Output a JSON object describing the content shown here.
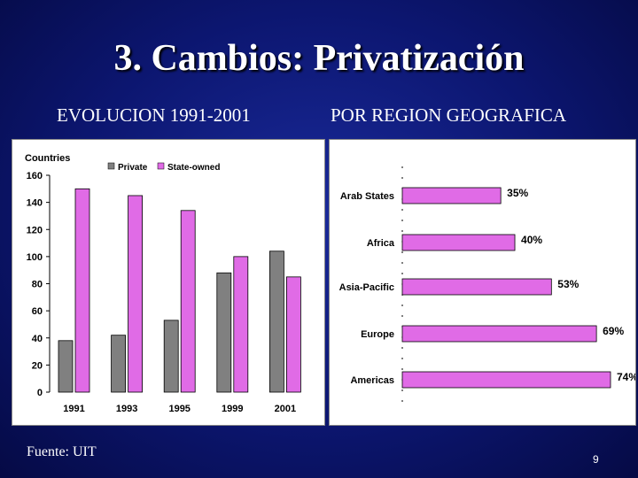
{
  "slide": {
    "title": "3. Cambios: Privatización",
    "left_heading": "EVOLUCION 1991-2001",
    "right_heading": "POR REGION GEOGRAFICA",
    "source": "Fuente: UIT",
    "page_number": "9"
  },
  "chart_data": [
    {
      "type": "bar",
      "ylabel": "Countries",
      "categories": [
        "1991",
        "1993",
        "1995",
        "1999",
        "2001"
      ],
      "series": [
        {
          "name": "Private",
          "color": "#808080",
          "values": [
            38,
            42,
            53,
            88,
            104
          ]
        },
        {
          "name": "State-owned",
          "color": "#e06be6",
          "values": [
            150,
            145,
            134,
            100,
            85
          ]
        }
      ],
      "ylim": [
        0,
        160
      ],
      "yticks": [
        "0",
        "20",
        "40",
        "60",
        "80",
        "100",
        "120",
        "140",
        "160"
      ],
      "legend": "top"
    },
    {
      "type": "bar",
      "orientation": "horizontal",
      "color": "#e06be6",
      "categories": [
        "Arab States",
        "Africa",
        "Asia-Pacific",
        "Europe",
        "Americas"
      ],
      "values": [
        35,
        40,
        53,
        69,
        74
      ],
      "labels": [
        "35%",
        "40%",
        "53%",
        "69%",
        "74%"
      ]
    }
  ]
}
